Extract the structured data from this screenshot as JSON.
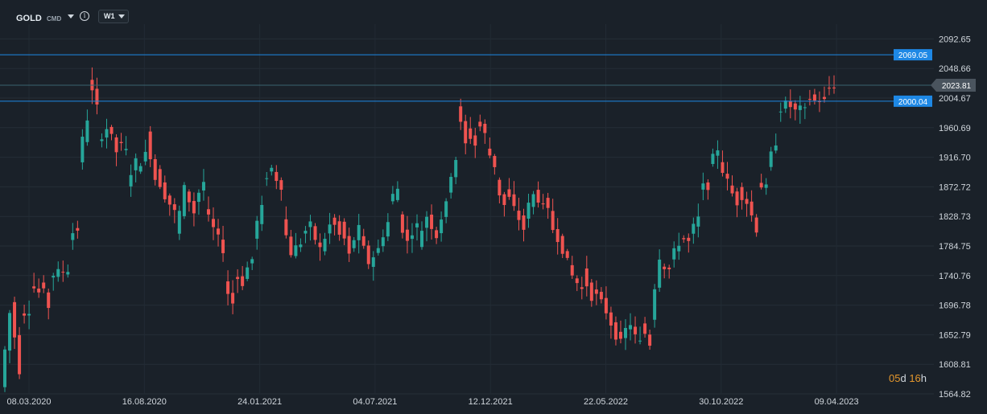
{
  "toolbar": {
    "symbol": "GOLD",
    "category": "CMD",
    "info_icon": "info-icon",
    "timeframe": "W1"
  },
  "countdown": {
    "days": "05",
    "days_unit": "d",
    "hours": "16",
    "hours_unit": "h"
  },
  "colors": {
    "up": "#26a69a",
    "down": "#ef5350",
    "background": "#1a2129",
    "level_line": "#1e88e5",
    "price_tag": "#4a545e"
  },
  "chart_data": {
    "type": "candlestick",
    "ylim": [
      1564.82,
      2114.63
    ],
    "yticks": [
      "2092.65",
      "2048.66",
      "2004.67",
      "1960.69",
      "1916.70",
      "1872.72",
      "1828.73",
      "1784.75",
      "1740.76",
      "1696.78",
      "1652.79",
      "1608.81",
      "1564.82"
    ],
    "xticks": [
      "08.03.2020",
      "16.08.2020",
      "24.01.2021",
      "04.07.2021",
      "12.12.2021",
      "22.05.2022",
      "30.10.2022",
      "09.04.2023"
    ],
    "levels": [
      {
        "label": "2069.05",
        "value": 2069.05
      },
      {
        "label": "2000.04",
        "value": 2000.04
      }
    ],
    "current_price": {
      "label": "2023.81",
      "value": 2023.81
    },
    "candles_weekly_close_anchors": [
      [
        1575,
        1685
      ],
      [
        1700,
        1600
      ],
      [
        1682,
        1690
      ],
      [
        1730,
        1715
      ],
      [
        1735,
        1695
      ],
      [
        1740,
        1745
      ],
      [
        1745,
        1750
      ],
      [
        1800,
        1810
      ],
      [
        1910,
        1975
      ],
      [
        2035,
        1990
      ],
      [
        1940,
        1960
      ],
      [
        1965,
        1925
      ],
      [
        1940,
        1925
      ],
      [
        1880,
        1910
      ],
      [
        1900,
        1920
      ],
      [
        1955,
        1885
      ],
      [
        1895,
        1860
      ],
      [
        1860,
        1835
      ],
      [
        1800,
        1870
      ],
      [
        1870,
        1835
      ],
      [
        1850,
        1880
      ],
      [
        1840,
        1810
      ],
      [
        1810,
        1780
      ],
      [
        1730,
        1700
      ],
      [
        1745,
        1730
      ],
      [
        1740,
        1765
      ],
      [
        1800,
        1840
      ],
      [
        1880,
        1900
      ],
      [
        1895,
        1875
      ],
      [
        1825,
        1775
      ],
      [
        1775,
        1790
      ],
      [
        1800,
        1815
      ],
      [
        1810,
        1780
      ],
      [
        1780,
        1815
      ],
      [
        1830,
        1800
      ],
      [
        1820,
        1770
      ],
      [
        1780,
        1810
      ],
      [
        1800,
        1760
      ],
      [
        1760,
        1780
      ],
      [
        1785,
        1820
      ],
      [
        1850,
        1870
      ],
      [
        1830,
        1790
      ],
      [
        1800,
        1815
      ],
      [
        1790,
        1830
      ],
      [
        1830,
        1800
      ],
      [
        1810,
        1845
      ],
      [
        1870,
        1915
      ],
      [
        1995,
        1935
      ],
      [
        1960,
        1935
      ],
      [
        1975,
        1950
      ],
      [
        1935,
        1905
      ],
      [
        1880,
        1845
      ],
      [
        1870,
        1840
      ],
      [
        1840,
        1810
      ],
      [
        1830,
        1860
      ],
      [
        1870,
        1840
      ],
      [
        1860,
        1810
      ],
      [
        1815,
        1780
      ],
      [
        1780,
        1740
      ],
      [
        1740,
        1720
      ],
      [
        1745,
        1710
      ],
      [
        1720,
        1700
      ],
      [
        1705,
        1670
      ],
      [
        1665,
        1640
      ],
      [
        1650,
        1670
      ],
      [
        1660,
        1640
      ],
      [
        1670,
        1640
      ],
      [
        1680,
        1770
      ],
      [
        1760,
        1750
      ],
      [
        1760,
        1790
      ],
      [
        1800,
        1790
      ],
      [
        1800,
        1825
      ],
      [
        1870,
        1875
      ],
      [
        1900,
        1930
      ],
      [
        1915,
        1880
      ],
      [
        1875,
        1850
      ],
      [
        1870,
        1850
      ],
      [
        1850,
        1810
      ],
      [
        1880,
        1870
      ],
      [
        1900,
        1940
      ],
      [
        1985,
        1995
      ],
      [
        2000,
        1985
      ],
      [
        1990,
        1985
      ],
      [
        2010,
        2000
      ],
      [
        2005,
        2000
      ],
      [
        2015,
        2023.81
      ]
    ]
  }
}
